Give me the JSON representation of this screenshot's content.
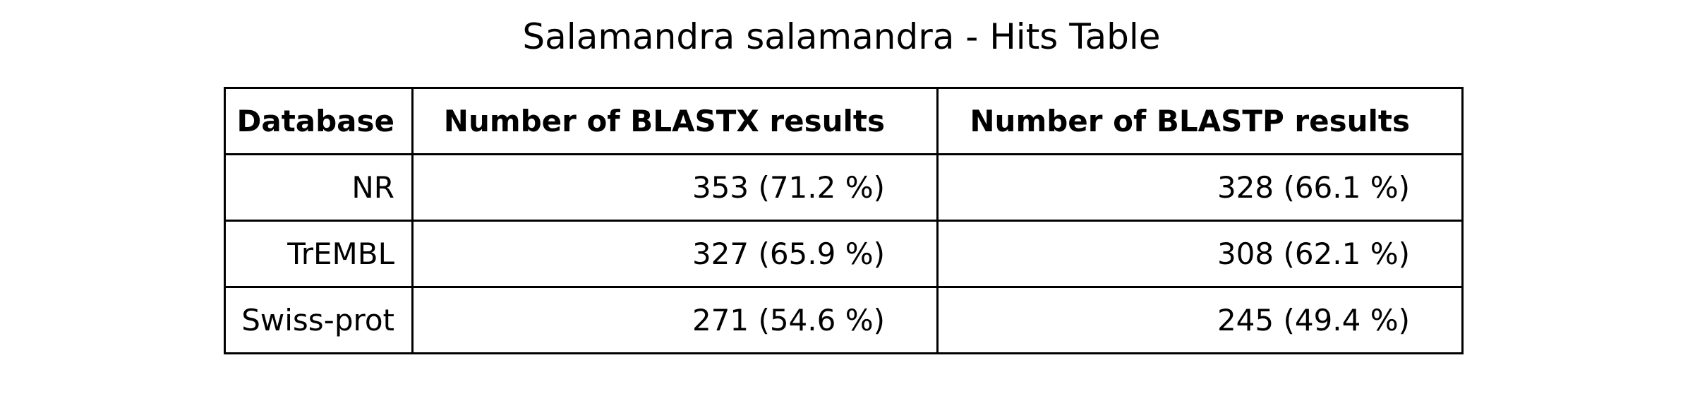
{
  "chart_data": {
    "type": "table",
    "title": "Salamandra salamandra - Hits Table",
    "columns": [
      "Database",
      "Number of BLASTX results",
      "Number of BLASTP results"
    ],
    "rows": [
      [
        "NR",
        "353 (71.2 %)",
        "328 (66.1 %)"
      ],
      [
        "TrEMBL",
        "327 (65.9 %)",
        "308 (62.1 %)"
      ],
      [
        "Swiss-prot",
        "271 (54.6 %)",
        "245 (49.4 %)"
      ]
    ]
  }
}
